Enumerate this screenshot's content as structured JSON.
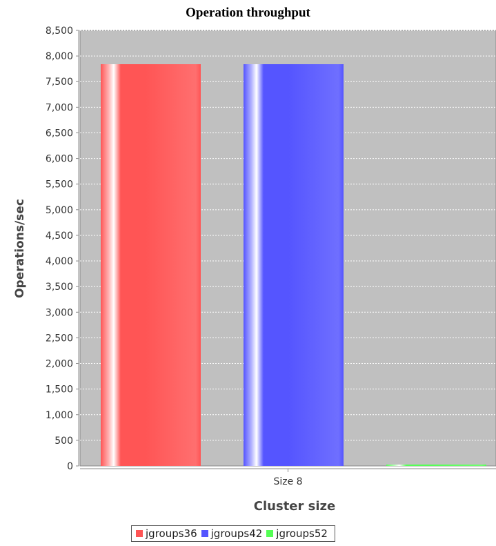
{
  "chart_data": {
    "type": "bar",
    "title": "Operation throughput",
    "xlabel": "Cluster size",
    "ylabel": "Operations/sec",
    "categories": [
      "Size 8"
    ],
    "series": [
      {
        "name": "jgroups36",
        "color": "#ff5555",
        "values": [
          7840
        ]
      },
      {
        "name": "jgroups42",
        "color": "#5555ff",
        "values": [
          7840
        ]
      },
      {
        "name": "jgroups52",
        "color": "#55ff55",
        "values": [
          20
        ]
      }
    ],
    "ylim": [
      0,
      8500
    ],
    "yticks": [
      0,
      500,
      1000,
      1500,
      2000,
      2500,
      3000,
      3500,
      4000,
      4500,
      5000,
      5500,
      6000,
      6500,
      7000,
      7500,
      8000,
      8500
    ],
    "ytick_labels": [
      "0",
      "500",
      "1,000",
      "1,500",
      "2,000",
      "2,500",
      "3,000",
      "3,500",
      "4,000",
      "4,500",
      "5,000",
      "5,500",
      "6,000",
      "6,500",
      "7,000",
      "7,500",
      "8,000",
      "8,500"
    ],
    "grid": true,
    "plot_background": "#c0c0c0",
    "legend_position": "bottom"
  }
}
